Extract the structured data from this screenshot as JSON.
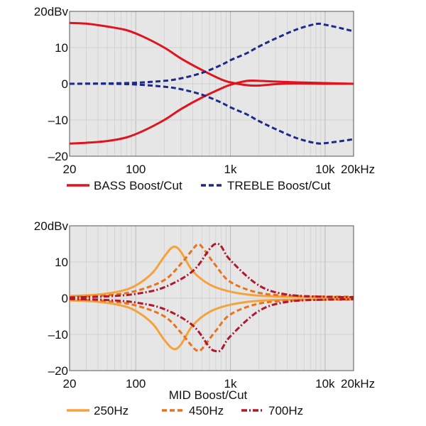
{
  "chart_data": [
    {
      "type": "line",
      "x_scale": "log",
      "xlim": [
        20,
        20000
      ],
      "ylim": [
        -20,
        20
      ],
      "y_unit_label": "20dBv",
      "x_ticks": [
        {
          "value": 20,
          "label": "20"
        },
        {
          "value": 100,
          "label": "100"
        },
        {
          "value": 1000,
          "label": "1k"
        },
        {
          "value": 10000,
          "label": "10k"
        },
        {
          "value": 20000,
          "label": "20kHz"
        }
      ],
      "y_ticks": [
        {
          "value": 20,
          "label": "20dBv"
        },
        {
          "value": 10,
          "label": "10"
        },
        {
          "value": 0,
          "label": "0"
        },
        {
          "value": -10,
          "label": "–10"
        },
        {
          "value": -20,
          "label": "–20"
        }
      ],
      "grid": true,
      "legend_position": "bottom",
      "xlabel": "",
      "series": [
        {
          "name": "BASS Boost/Cut",
          "legend": true,
          "color": "#e0141e",
          "style": "solid",
          "points": [
            [
              20,
              16.8
            ],
            [
              30,
              16.6
            ],
            [
              50,
              15.8
            ],
            [
              80,
              14.8
            ],
            [
              120,
              13
            ],
            [
              200,
              10
            ],
            [
              300,
              7
            ],
            [
              500,
              3.8
            ],
            [
              800,
              1.2
            ],
            [
              1000,
              0.4
            ],
            [
              1500,
              -0.4
            ],
            [
              2000,
              -0.5
            ],
            [
              3000,
              -0.1
            ],
            [
              5000,
              0.1
            ],
            [
              10000,
              0
            ],
            [
              20000,
              0
            ]
          ]
        },
        {
          "name": "BASS Boost/Cut",
          "legend": false,
          "color": "#e0141e",
          "style": "solid",
          "points": [
            [
              20,
              -16.5
            ],
            [
              30,
              -16.3
            ],
            [
              50,
              -15.8
            ],
            [
              80,
              -14.8
            ],
            [
              120,
              -13
            ],
            [
              200,
              -10
            ],
            [
              300,
              -7
            ],
            [
              500,
              -3.8
            ],
            [
              800,
              -1.3
            ],
            [
              1000,
              -0.3
            ],
            [
              1500,
              0.8
            ],
            [
              2000,
              0.8
            ],
            [
              3000,
              0.6
            ],
            [
              5000,
              0.4
            ],
            [
              10000,
              0.2
            ],
            [
              20000,
              0
            ]
          ]
        },
        {
          "name": "TREBLE Boost/Cut",
          "legend": true,
          "color": "#1d2a8c",
          "style": "dashed",
          "points": [
            [
              20,
              0
            ],
            [
              50,
              0.1
            ],
            [
              100,
              0.3
            ],
            [
              200,
              0.8
            ],
            [
              300,
              1.5
            ],
            [
              500,
              3
            ],
            [
              800,
              5.2
            ],
            [
              1000,
              6.5
            ],
            [
              1500,
              8.5
            ],
            [
              2000,
              10.3
            ],
            [
              3000,
              12.5
            ],
            [
              5000,
              15
            ],
            [
              8000,
              16.5
            ],
            [
              10000,
              16.3
            ],
            [
              15000,
              15.3
            ],
            [
              20000,
              14.5
            ]
          ]
        },
        {
          "name": "TREBLE Boost/Cut",
          "legend": false,
          "color": "#1d2a8c",
          "style": "dashed",
          "points": [
            [
              20,
              0
            ],
            [
              50,
              0
            ],
            [
              100,
              -0.2
            ],
            [
              200,
              -0.8
            ],
            [
              300,
              -1.5
            ],
            [
              500,
              -3
            ],
            [
              800,
              -5.2
            ],
            [
              1000,
              -6.5
            ],
            [
              1500,
              -8.5
            ],
            [
              2000,
              -10.3
            ],
            [
              3000,
              -12.5
            ],
            [
              5000,
              -15
            ],
            [
              8000,
              -16.4
            ],
            [
              10000,
              -16.4
            ],
            [
              15000,
              -15.8
            ],
            [
              20000,
              -15.3
            ]
          ]
        }
      ]
    },
    {
      "type": "line",
      "x_scale": "log",
      "xlim": [
        20,
        20000
      ],
      "ylim": [
        -20,
        20
      ],
      "y_unit_label": "20dBv",
      "x_ticks": [
        {
          "value": 20,
          "label": "20"
        },
        {
          "value": 100,
          "label": "100"
        },
        {
          "value": 1000,
          "label": "1k"
        },
        {
          "value": 10000,
          "label": "10k"
        },
        {
          "value": 20000,
          "label": "20kHz"
        }
      ],
      "y_ticks": [
        {
          "value": 20,
          "label": "20dBv"
        },
        {
          "value": 10,
          "label": "10"
        },
        {
          "value": 0,
          "label": "0"
        },
        {
          "value": -10,
          "label": "–10"
        },
        {
          "value": -20,
          "label": "–20"
        }
      ],
      "grid": true,
      "legend_position": "bottom",
      "xlabel": "MID Boost/Cut",
      "series": [
        {
          "name": "250Hz",
          "legend": true,
          "color": "#f5a13c",
          "style": "solid",
          "points": [
            [
              20,
              0.6
            ],
            [
              40,
              1
            ],
            [
              70,
              2
            ],
            [
              100,
              3.5
            ],
            [
              150,
              7
            ],
            [
              200,
              11.5
            ],
            [
              250,
              14.2
            ],
            [
              300,
              12.8
            ],
            [
              400,
              7.5
            ],
            [
              600,
              3.8
            ],
            [
              1000,
              1.8
            ],
            [
              2000,
              0.7
            ],
            [
              5000,
              0.4
            ],
            [
              20000,
              0.3
            ]
          ]
        },
        {
          "name": "250Hz",
          "legend": false,
          "color": "#f5a13c",
          "style": "solid",
          "points": [
            [
              20,
              -0.6
            ],
            [
              40,
              -1
            ],
            [
              70,
              -2
            ],
            [
              100,
              -3.5
            ],
            [
              150,
              -7
            ],
            [
              200,
              -11.5
            ],
            [
              250,
              -14
            ],
            [
              300,
              -12.8
            ],
            [
              400,
              -7.5
            ],
            [
              600,
              -3.8
            ],
            [
              1000,
              -1.8
            ],
            [
              2000,
              -0.7
            ],
            [
              5000,
              -0.4
            ],
            [
              20000,
              -0.3
            ]
          ]
        },
        {
          "name": "450Hz",
          "legend": true,
          "color": "#e8731c",
          "style": "dashed",
          "points": [
            [
              20,
              0.3
            ],
            [
              50,
              0.8
            ],
            [
              100,
              2
            ],
            [
              200,
              5
            ],
            [
              300,
              9.5
            ],
            [
              400,
              13.5
            ],
            [
              450,
              14.8
            ],
            [
              500,
              14.2
            ],
            [
              700,
              9
            ],
            [
              1000,
              4.5
            ],
            [
              2000,
              1.5
            ],
            [
              5000,
              0.6
            ],
            [
              20000,
              0.4
            ]
          ]
        },
        {
          "name": "450Hz",
          "legend": false,
          "color": "#e8731c",
          "style": "dashed",
          "points": [
            [
              20,
              -0.3
            ],
            [
              50,
              -0.8
            ],
            [
              100,
              -2
            ],
            [
              200,
              -5
            ],
            [
              300,
              -9.5
            ],
            [
              400,
              -13.5
            ],
            [
              450,
              -14.5
            ],
            [
              500,
              -14
            ],
            [
              700,
              -9
            ],
            [
              1000,
              -4.5
            ],
            [
              2000,
              -1.5
            ],
            [
              5000,
              -0.6
            ],
            [
              20000,
              -0.4
            ]
          ]
        },
        {
          "name": "700Hz",
          "legend": true,
          "color": "#b0182c",
          "style": "dashdot",
          "points": [
            [
              20,
              0.2
            ],
            [
              50,
              0.5
            ],
            [
              100,
              1.2
            ],
            [
              200,
              3
            ],
            [
              400,
              7.5
            ],
            [
              600,
              13.5
            ],
            [
              700,
              15
            ],
            [
              800,
              14.3
            ],
            [
              1000,
              10.5
            ],
            [
              2000,
              3.5
            ],
            [
              4000,
              1
            ],
            [
              10000,
              0.4
            ],
            [
              20000,
              0.3
            ]
          ]
        },
        {
          "name": "700Hz",
          "legend": false,
          "color": "#b0182c",
          "style": "dashdot",
          "points": [
            [
              20,
              -0.2
            ],
            [
              50,
              -0.5
            ],
            [
              100,
              -1.2
            ],
            [
              200,
              -3
            ],
            [
              400,
              -7.5
            ],
            [
              600,
              -13.5
            ],
            [
              700,
              -14.6
            ],
            [
              800,
              -14.2
            ],
            [
              1000,
              -10.5
            ],
            [
              2000,
              -3.5
            ],
            [
              4000,
              -1
            ],
            [
              10000,
              -0.4
            ],
            [
              20000,
              -0.3
            ]
          ]
        }
      ]
    }
  ]
}
